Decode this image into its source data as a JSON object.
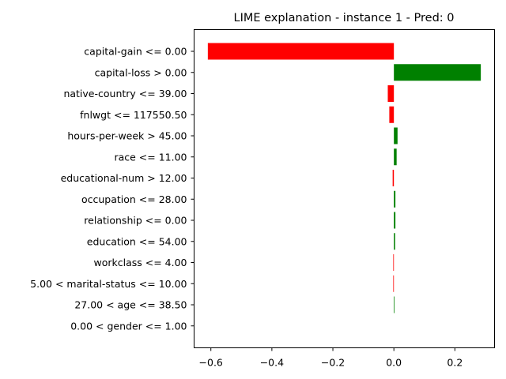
{
  "chart_data": {
    "type": "bar",
    "orientation": "horizontal",
    "title": "LIME explanation - instance 1 - Pred: 0",
    "xlabel": "",
    "ylabel": "",
    "xlim": [
      -0.655,
      0.33
    ],
    "xticks": [
      -0.6,
      -0.4,
      -0.2,
      0.0,
      0.2
    ],
    "xtick_labels": [
      "−0.6",
      "−0.4",
      "−0.2",
      "0.0",
      "0.2"
    ],
    "grid": false,
    "legend": "none",
    "colors": {
      "positive": "#008000",
      "negative": "#ff0000"
    },
    "categories": [
      "capital-gain <= 0.00",
      "capital-loss > 0.00",
      "native-country <= 39.00",
      "fnlwgt <= 117550.50",
      "hours-per-week > 45.00",
      "race <= 11.00",
      "educational-num > 12.00",
      "occupation <= 28.00",
      "relationship <= 0.00",
      "education <= 54.00",
      "workclass <= 4.00",
      "5.00 < marital-status <= 10.00",
      "27.00 < age <= 38.50",
      "0.00 < gender <= 1.00"
    ],
    "values": [
      -0.61,
      0.285,
      -0.02,
      -0.015,
      0.012,
      0.009,
      -0.004,
      0.005,
      0.005,
      0.004,
      -0.002,
      -0.002,
      0.002,
      0.0
    ]
  }
}
